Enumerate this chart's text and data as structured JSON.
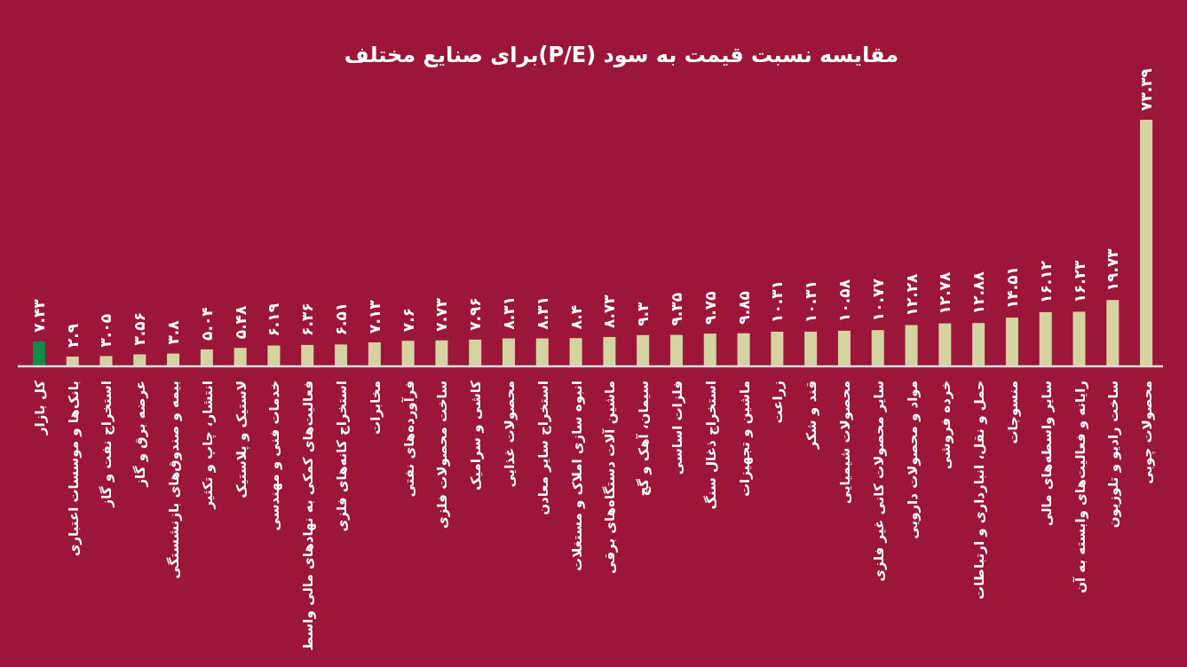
{
  "chart_data": {
    "type": "bar",
    "title": "مقایسه نسبت قیمت به سود  (P/E)برای صنایع مختلف",
    "categories": [
      "کل بازار",
      "بانک‌ها و موسسات اعتباری",
      "استخراج نفت و گاز",
      "عرضه برق و گاز",
      "بیمه و صندوق‌های بازنشستگی",
      "انتشار، چاپ و تکثیر",
      "لاستیک و پلاستیک",
      "خدمات فنی و مهندسی",
      "فعالیت‌های کمکی به نهادهای مالی واسط",
      "استخراج کانه‌های فلزی",
      "مخابرات",
      "فرآورده‌های نفتی",
      "ساخت محصولات فلزی",
      "کاشی و سرامیک",
      "محصولات غذایی",
      "استخراج سایر معادن",
      "انبوه سازی املاک و مستغلات",
      "ماشین آلات دستگاه‌های برقی",
      "سیمان، آهک و گچ",
      "فلزات اساسی",
      "استخراج ذغال سنگ",
      "ماشین و تجهیزات",
      "زراعت",
      "قند و شکر",
      "محصولات شیمیایی",
      "سایر محصولات کانی غیر فلزی",
      "مواد و محصولات دارویی",
      "خرده فروشی",
      "حمل و نقل، انبارداری و ارتباطات",
      "منسوجات",
      "سایر واسطه‌های مالی",
      "رایانه و فعالیت‌های وابسته به آن",
      "ساخت رادیو و تلوزیون",
      "محصولات چوبی"
    ],
    "values": [
      7.43,
      2.9,
      3.05,
      3.56,
      3.8,
      5.04,
      5.48,
      6.19,
      6.36,
      6.51,
      7.13,
      7.6,
      7.73,
      7.96,
      8.31,
      8.31,
      8.4,
      8.73,
      9.3,
      9.35,
      9.75,
      9.85,
      10.31,
      10.31,
      10.58,
      10.77,
      12.28,
      12.78,
      12.88,
      14.51,
      16.12,
      16.23,
      19.73,
      73.39
    ],
    "value_labels": [
      "۷.۴۳",
      "۲.۹",
      "۳.۰۵",
      "۳.۵۶",
      "۳.۸",
      "۵.۰۴",
      "۵.۴۸",
      "۶.۱۹",
      "۶.۳۶",
      "۶.۵۱",
      "۷.۱۳",
      "۷.۶",
      "۷.۷۳",
      "۷.۹۶",
      "۸.۳۱",
      "۸.۳۱",
      "۸.۴",
      "۸.۷۳",
      "۹.۳",
      "۹.۳۵",
      "۹.۷۵",
      "۹.۸۵",
      "۱۰.۳۱",
      "۱۰.۳۱",
      "۱۰.۵۸",
      "۱۰.۷۷",
      "۱۲.۲۸",
      "۱۲.۷۸",
      "۱۲.۸۸",
      "۱۴.۵۱",
      "۱۶.۱۲",
      "۱۶.۲۳",
      "۱۹.۷۳",
      "۷۳.۳۹"
    ],
    "colors": [
      "#128a45",
      "#d6d3a3",
      "#d6d3a3",
      "#d6d3a3",
      "#d6d3a3",
      "#d6d3a3",
      "#d6d3a3",
      "#d6d3a3",
      "#d6d3a3",
      "#d6d3a3",
      "#d6d3a3",
      "#d6d3a3",
      "#d6d3a3",
      "#d6d3a3",
      "#d6d3a3",
      "#d6d3a3",
      "#d6d3a3",
      "#d6d3a3",
      "#d6d3a3",
      "#d6d3a3",
      "#d6d3a3",
      "#d6d3a3",
      "#d6d3a3",
      "#d6d3a3",
      "#d6d3a3",
      "#d6d3a3",
      "#d6d3a3",
      "#d6d3a3",
      "#d6d3a3",
      "#d6d3a3",
      "#d6d3a3",
      "#d6d3a3",
      "#d6d3a3",
      "#d6d3a3"
    ]
  }
}
